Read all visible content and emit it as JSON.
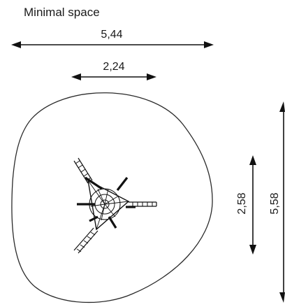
{
  "title": "Minimal space",
  "dimensions": {
    "outer_width": "5,44",
    "inner_width": "2,24",
    "inner_height": "2,58",
    "outer_height": "5,58"
  }
}
